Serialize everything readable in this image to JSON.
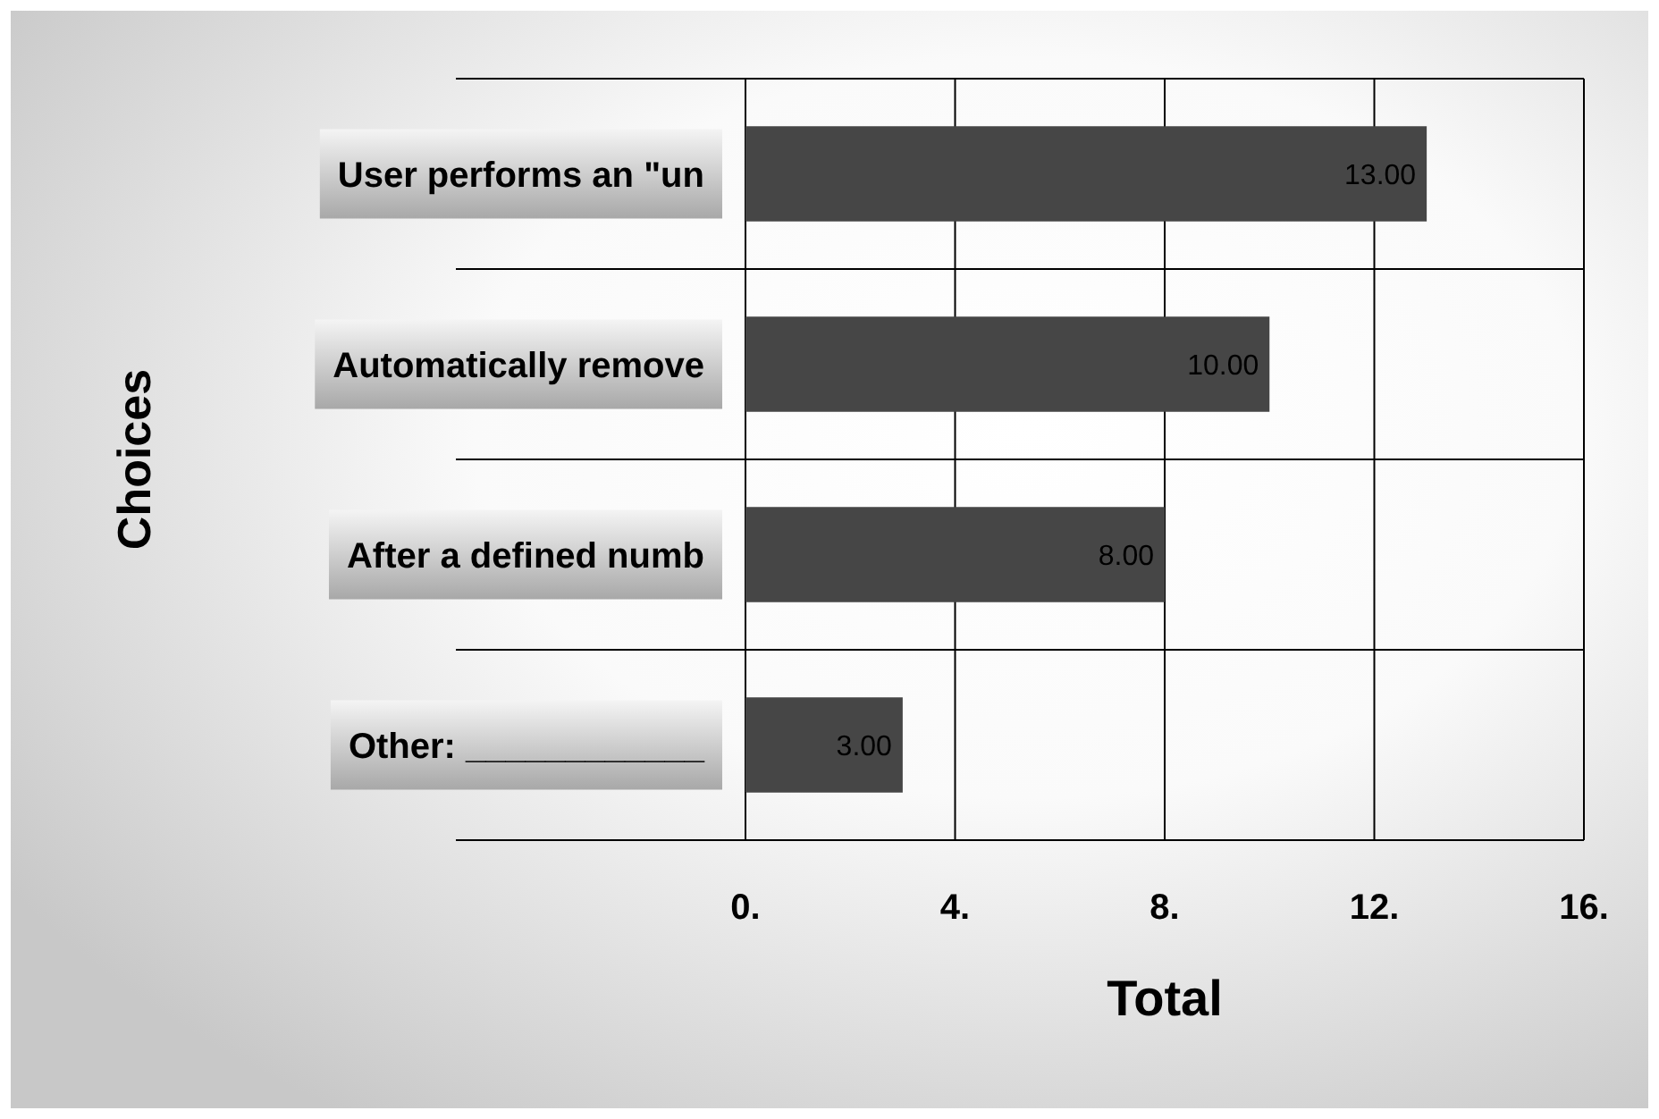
{
  "chart_data": {
    "type": "bar",
    "orientation": "horizontal",
    "categories": [
      "User performs an \"un",
      "Automatically remove",
      "After a defined numb",
      "Other: ____________"
    ],
    "values": [
      13,
      10,
      8,
      3
    ],
    "value_labels": [
      "13.00",
      "10.00",
      "8.00",
      "3.00"
    ],
    "color": "#464646",
    "xlim": [
      0,
      16
    ],
    "xticks": [
      {
        "value": 0,
        "label": "0."
      },
      {
        "value": 4,
        "label": "4."
      },
      {
        "value": 8,
        "label": "8."
      },
      {
        "value": 12,
        "label": "12."
      },
      {
        "value": 16,
        "label": "16."
      }
    ],
    "xlabel": "Total",
    "ylabel": "Choices",
    "grid": "x"
  }
}
